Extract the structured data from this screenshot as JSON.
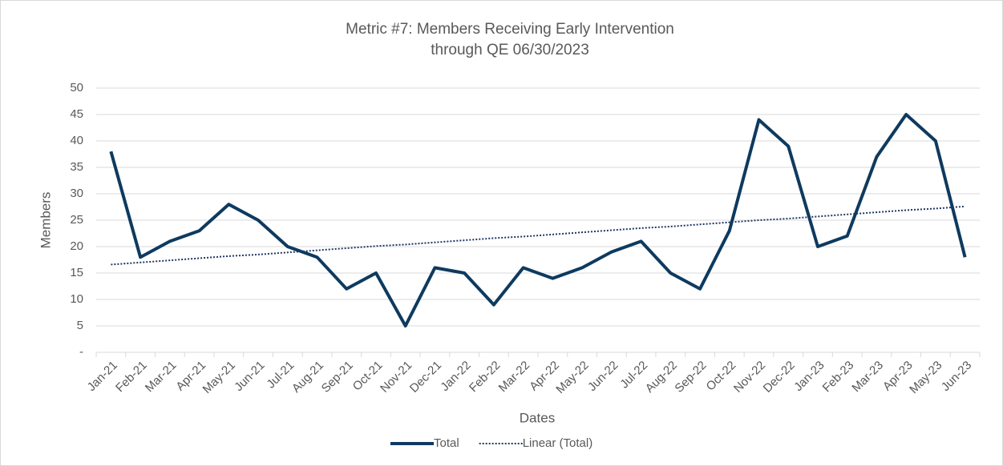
{
  "chart_data": {
    "type": "line",
    "title": [
      "Metric #7: Members Receiving Early Intervention",
      "through QE 06/30/2023"
    ],
    "x_label": "Dates",
    "y_label": "Members",
    "categories": [
      "Jan-21",
      "Feb-21",
      "Mar-21",
      "Apr-21",
      "May-21",
      "Jun-21",
      "Jul-21",
      "Aug-21",
      "Sep-21",
      "Oct-21",
      "Nov-21",
      "Dec-21",
      "Jan-22",
      "Feb-22",
      "Mar-22",
      "Apr-22",
      "May-22",
      "Jun-22",
      "Jul-22",
      "Aug-22",
      "Sep-22",
      "Oct-22",
      "Nov-22",
      "Dec-22",
      "Jan-23",
      "Feb-23",
      "Mar-23",
      "Apr-23",
      "May-23",
      "Jun-23"
    ],
    "series": [
      {
        "name": "Total",
        "color": "#0e3a5f",
        "style": "solid",
        "values": [
          38,
          18,
          21,
          23,
          28,
          25,
          20,
          18,
          12,
          15,
          5,
          16,
          15,
          9,
          16,
          14,
          16,
          19,
          21,
          15,
          12,
          23,
          44,
          39,
          20,
          22,
          37,
          45,
          40,
          18
        ]
      },
      {
        "name": "Linear (Total)",
        "color": "#1f3864",
        "style": "dotted",
        "values": [
          16.6,
          17.0,
          17.4,
          17.8,
          18.2,
          18.5,
          18.9,
          19.3,
          19.7,
          20.1,
          20.4,
          20.8,
          21.2,
          21.6,
          21.9,
          22.3,
          22.7,
          23.1,
          23.5,
          23.8,
          24.2,
          24.6,
          25.0,
          25.3,
          25.7,
          26.1,
          26.5,
          26.9,
          27.2,
          27.6
        ]
      }
    ],
    "ylim": [
      0,
      50
    ],
    "yticks": [
      {
        "value": 0,
        "label": "-"
      },
      5,
      10,
      15,
      20,
      25,
      30,
      35,
      40,
      45,
      50
    ],
    "grid": true,
    "legend": "bottom"
  }
}
